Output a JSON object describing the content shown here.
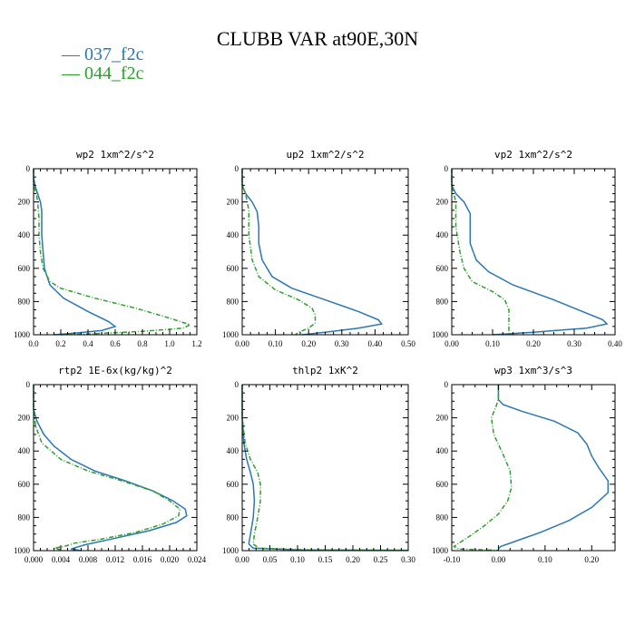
{
  "figure": {
    "title": "CLUBB VAR at90E,30N",
    "legend": [
      {
        "name": "037_f2c",
        "color": "#2a77b4"
      },
      {
        "name": "044_f2c",
        "color": "#2ca02c"
      }
    ]
  },
  "chart_data": [
    {
      "type": "line",
      "title": "wp2  1xm^2/s^2",
      "xlim": [
        0,
        1.2
      ],
      "ylim": [
        1000,
        0
      ],
      "xticks": [
        0,
        0.2,
        0.4,
        0.6,
        0.8,
        1.0,
        1.2
      ],
      "xticklabels": [
        "0.0",
        "0.2",
        "0.4",
        "0.6",
        "0.8",
        "1.0",
        "1.2"
      ],
      "yticks": [
        0,
        200,
        400,
        600,
        800,
        1000
      ],
      "series": [
        {
          "name": "037_f2c",
          "color": "#2a77b4",
          "dashed": false,
          "points": [
            [
              0.0,
              0
            ],
            [
              0.0,
              50
            ],
            [
              0.01,
              100
            ],
            [
              0.03,
              150
            ],
            [
              0.05,
              200
            ],
            [
              0.06,
              250
            ],
            [
              0.06,
              300
            ],
            [
              0.06,
              400
            ],
            [
              0.07,
              500
            ],
            [
              0.08,
              600
            ],
            [
              0.12,
              700
            ],
            [
              0.22,
              780
            ],
            [
              0.4,
              860
            ],
            [
              0.55,
              920
            ],
            [
              0.6,
              950
            ],
            [
              0.5,
              975
            ],
            [
              0.3,
              990
            ],
            [
              0.15,
              1000
            ]
          ]
        },
        {
          "name": "044_f2c",
          "color": "#2ca02c",
          "dashed": true,
          "points": [
            [
              0.0,
              0
            ],
            [
              0.0,
              100
            ],
            [
              0.02,
              150
            ],
            [
              0.03,
              200
            ],
            [
              0.04,
              300
            ],
            [
              0.04,
              400
            ],
            [
              0.05,
              500
            ],
            [
              0.07,
              600
            ],
            [
              0.12,
              680
            ],
            [
              0.2,
              720
            ],
            [
              0.45,
              780
            ],
            [
              0.75,
              840
            ],
            [
              1.0,
              900
            ],
            [
              1.15,
              940
            ],
            [
              1.1,
              960
            ],
            [
              0.8,
              980
            ],
            [
              0.4,
              995
            ],
            [
              0.2,
              1000
            ]
          ]
        }
      ]
    },
    {
      "type": "line",
      "title": "up2  1xm^2/s^2",
      "xlim": [
        0,
        0.5
      ],
      "ylim": [
        1000,
        0
      ],
      "xticks": [
        0,
        0.1,
        0.2,
        0.3,
        0.4,
        0.5
      ],
      "xticklabels": [
        "0.00",
        "0.10",
        "0.20",
        "0.30",
        "0.40",
        "0.50"
      ],
      "yticks": [
        0,
        200,
        400,
        600,
        800,
        1000
      ],
      "series": [
        {
          "name": "037_f2c",
          "color": "#2a77b4",
          "dashed": false,
          "points": [
            [
              0.0,
              0
            ],
            [
              0.0,
              100
            ],
            [
              0.01,
              150
            ],
            [
              0.03,
              200
            ],
            [
              0.045,
              260
            ],
            [
              0.05,
              350
            ],
            [
              0.05,
              450
            ],
            [
              0.06,
              550
            ],
            [
              0.09,
              650
            ],
            [
              0.15,
              720
            ],
            [
              0.25,
              790
            ],
            [
              0.35,
              860
            ],
            [
              0.41,
              910
            ],
            [
              0.42,
              935
            ],
            [
              0.35,
              960
            ],
            [
              0.25,
              985
            ],
            [
              0.18,
              1000
            ]
          ]
        },
        {
          "name": "044_f2c",
          "color": "#2ca02c",
          "dashed": true,
          "points": [
            [
              0.0,
              0
            ],
            [
              0.0,
              100
            ],
            [
              0.01,
              150
            ],
            [
              0.02,
              250
            ],
            [
              0.02,
              400
            ],
            [
              0.03,
              550
            ],
            [
              0.05,
              650
            ],
            [
              0.1,
              730
            ],
            [
              0.17,
              790
            ],
            [
              0.21,
              840
            ],
            [
              0.22,
              880
            ],
            [
              0.22,
              930
            ],
            [
              0.2,
              960
            ],
            [
              0.17,
              985
            ],
            [
              0.16,
              1000
            ]
          ]
        }
      ]
    },
    {
      "type": "line",
      "title": "vp2  1xm^2/s^2",
      "xlim": [
        0,
        0.4
      ],
      "ylim": [
        1000,
        0
      ],
      "xticks": [
        0,
        0.1,
        0.2,
        0.3,
        0.4
      ],
      "xticklabels": [
        "0.00",
        "0.10",
        "0.20",
        "0.30",
        "0.40"
      ],
      "yticks": [
        0,
        200,
        400,
        600,
        800,
        1000
      ],
      "series": [
        {
          "name": "037_f2c",
          "color": "#2a77b4",
          "dashed": false,
          "points": [
            [
              0.0,
              0
            ],
            [
              0.0,
              100
            ],
            [
              0.01,
              150
            ],
            [
              0.03,
              200
            ],
            [
              0.045,
              270
            ],
            [
              0.045,
              350
            ],
            [
              0.045,
              450
            ],
            [
              0.06,
              550
            ],
            [
              0.09,
              620
            ],
            [
              0.15,
              700
            ],
            [
              0.25,
              790
            ],
            [
              0.33,
              870
            ],
            [
              0.37,
              910
            ],
            [
              0.38,
              935
            ],
            [
              0.33,
              960
            ],
            [
              0.2,
              985
            ],
            [
              0.1,
              1000
            ]
          ]
        },
        {
          "name": "044_f2c",
          "color": "#2ca02c",
          "dashed": true,
          "points": [
            [
              0.0,
              0
            ],
            [
              0.0,
              100
            ],
            [
              0.01,
              200
            ],
            [
              0.01,
              350
            ],
            [
              0.02,
              500
            ],
            [
              0.03,
              600
            ],
            [
              0.05,
              680
            ],
            [
              0.1,
              740
            ],
            [
              0.13,
              790
            ],
            [
              0.14,
              850
            ],
            [
              0.14,
              900
            ],
            [
              0.14,
              1000
            ]
          ]
        }
      ]
    },
    {
      "type": "line",
      "title": "rtp2  1E-6x(kg/kg)^2",
      "xlim": [
        0,
        0.024
      ],
      "ylim": [
        1000,
        0
      ],
      "xticks": [
        0,
        0.004,
        0.008,
        0.012,
        0.016,
        0.02,
        0.024
      ],
      "xticklabels": [
        "0.000",
        "0.004",
        "0.008",
        "0.012",
        "0.016",
        "0.020",
        "0.024"
      ],
      "yticks": [
        0,
        200,
        400,
        600,
        800,
        1000
      ],
      "series": [
        {
          "name": "037_f2c",
          "color": "#2a77b4",
          "dashed": false,
          "points": [
            [
              0.0,
              0
            ],
            [
              0.0,
              150
            ],
            [
              0.0005,
              220
            ],
            [
              0.0015,
              300
            ],
            [
              0.003,
              370
            ],
            [
              0.0055,
              450
            ],
            [
              0.009,
              520
            ],
            [
              0.0135,
              580
            ],
            [
              0.0175,
              640
            ],
            [
              0.0205,
              700
            ],
            [
              0.0223,
              750
            ],
            [
              0.0225,
              790
            ],
            [
              0.021,
              830
            ],
            [
              0.017,
              880
            ],
            [
              0.012,
              925
            ],
            [
              0.0075,
              965
            ],
            [
              0.0055,
              990
            ],
            [
              0.007,
              1000
            ]
          ]
        },
        {
          "name": "044_f2c",
          "color": "#2ca02c",
          "dashed": true,
          "points": [
            [
              0.0,
              0
            ],
            [
              0.0,
              150
            ],
            [
              0.0003,
              250
            ],
            [
              0.0012,
              350
            ],
            [
              0.004,
              450
            ],
            [
              0.008,
              520
            ],
            [
              0.013,
              580
            ],
            [
              0.0175,
              640
            ],
            [
              0.02,
              700
            ],
            [
              0.0215,
              750
            ],
            [
              0.0213,
              790
            ],
            [
              0.019,
              840
            ],
            [
              0.015,
              890
            ],
            [
              0.01,
              930
            ],
            [
              0.006,
              955
            ],
            [
              0.0045,
              975
            ],
            [
              0.003,
              985
            ],
            [
              0.004,
              995
            ]
          ]
        }
      ]
    },
    {
      "type": "line",
      "title": "thlp2  1xK^2",
      "xlim": [
        0,
        0.3
      ],
      "ylim": [
        1000,
        0
      ],
      "xticks": [
        0,
        0.05,
        0.1,
        0.15,
        0.2,
        0.25,
        0.3
      ],
      "xticklabels": [
        "0.00",
        "0.05",
        "0.10",
        "0.15",
        "0.20",
        "0.25",
        "0.30"
      ],
      "yticks": [
        0,
        200,
        400,
        600,
        800,
        1000
      ],
      "series": [
        {
          "name": "037_f2c",
          "color": "#2a77b4",
          "dashed": false,
          "points": [
            [
              0.0,
              0
            ],
            [
              0.0,
              200
            ],
            [
              0.003,
              350
            ],
            [
              0.008,
              450
            ],
            [
              0.015,
              530
            ],
            [
              0.02,
              600
            ],
            [
              0.022,
              700
            ],
            [
              0.02,
              800
            ],
            [
              0.015,
              900
            ],
            [
              0.012,
              960
            ],
            [
              0.02,
              985
            ],
            [
              0.1,
              995
            ],
            [
              0.3,
              998
            ]
          ]
        },
        {
          "name": "044_f2c",
          "color": "#2ca02c",
          "dashed": true,
          "points": [
            [
              0.0,
              0
            ],
            [
              0.0,
              200
            ],
            [
              0.005,
              350
            ],
            [
              0.015,
              450
            ],
            [
              0.028,
              530
            ],
            [
              0.033,
              600
            ],
            [
              0.033,
              700
            ],
            [
              0.028,
              800
            ],
            [
              0.022,
              900
            ],
            [
              0.02,
              960
            ],
            [
              0.03,
              985
            ],
            [
              0.12,
              995
            ],
            [
              0.3,
              998
            ]
          ]
        }
      ]
    },
    {
      "type": "line",
      "title": "wp3  1xm^3/s^3",
      "xlim": [
        -0.1,
        0.25
      ],
      "ylim": [
        1000,
        0
      ],
      "xticks": [
        -0.1,
        0,
        0.1,
        0.2
      ],
      "xticklabels": [
        "-0.10",
        "0.00",
        "0.10",
        "0.20"
      ],
      "yticks": [
        0,
        200,
        400,
        600,
        800,
        1000
      ],
      "series": [
        {
          "name": "037_f2c",
          "color": "#2a77b4",
          "dashed": false,
          "points": [
            [
              0.0,
              0
            ],
            [
              0.0,
              90
            ],
            [
              0.01,
              120
            ],
            [
              0.05,
              160
            ],
            [
              0.12,
              220
            ],
            [
              0.17,
              290
            ],
            [
              0.19,
              360
            ],
            [
              0.2,
              430
            ],
            [
              0.215,
              500
            ],
            [
              0.235,
              580
            ],
            [
              0.235,
              650
            ],
            [
              0.2,
              740
            ],
            [
              0.15,
              820
            ],
            [
              0.09,
              890
            ],
            [
              0.04,
              940
            ],
            [
              0.005,
              975
            ],
            [
              0.0,
              990
            ]
          ]
        },
        {
          "name": "044_f2c",
          "color": "#2ca02c",
          "dashed": true,
          "points": [
            [
              0.0,
              0
            ],
            [
              0.0,
              90
            ],
            [
              -0.005,
              130
            ],
            [
              -0.015,
              200
            ],
            [
              -0.01,
              300
            ],
            [
              0.01,
              420
            ],
            [
              0.025,
              520
            ],
            [
              0.028,
              620
            ],
            [
              0.02,
              700
            ],
            [
              0.0,
              780
            ],
            [
              -0.03,
              850
            ],
            [
              -0.06,
              910
            ],
            [
              -0.085,
              955
            ],
            [
              -0.095,
              975
            ],
            [
              -0.085,
              990
            ],
            [
              -0.03,
              995
            ],
            [
              0.0,
              998
            ]
          ]
        }
      ]
    }
  ]
}
